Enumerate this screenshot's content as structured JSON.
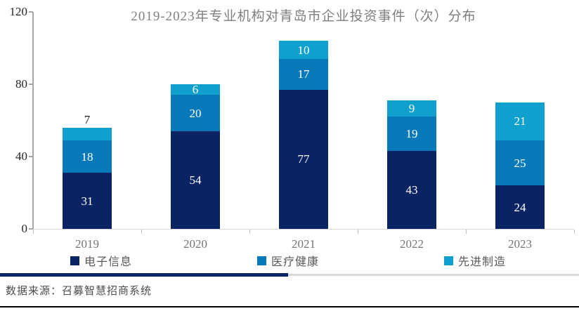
{
  "chart_data": {
    "type": "bar",
    "stacked": true,
    "title": "2019-2023年专业机构对青岛市企业投资事件（次）分布",
    "categories": [
      "2019",
      "2020",
      "2021",
      "2022",
      "2023"
    ],
    "series": [
      {
        "name": "电子信息",
        "color": "#0a2362",
        "values": [
          31,
          54,
          77,
          43,
          24
        ]
      },
      {
        "name": "医疗健康",
        "color": "#0779b8",
        "values": [
          18,
          20,
          17,
          19,
          25
        ]
      },
      {
        "name": "先进制造",
        "color": "#0fa0cd",
        "values": [
          7,
          6,
          10,
          9,
          21
        ],
        "label_outside_indices": [
          0
        ]
      }
    ],
    "ylim": [
      0,
      120
    ],
    "yticks": [
      0,
      40,
      80,
      120
    ],
    "grid": false,
    "legend_position": "bottom",
    "data_label_color_inside": "#ffffff",
    "data_label_color_outside": "#1a1a1a"
  },
  "styles": {
    "title_color": "#7f7f7f",
    "y_axis_color": "#a6a6a6",
    "x_axis_color": "#d9d9d9",
    "x_label_color": "#757575",
    "y_label_color": "#262626",
    "divider_left_color": "#0a2362",
    "divider_right_color": "#d9d9d9",
    "bottom_line_color": "#000000"
  },
  "footer": {
    "source_text": "数据来源：召募智慧招商系统"
  }
}
